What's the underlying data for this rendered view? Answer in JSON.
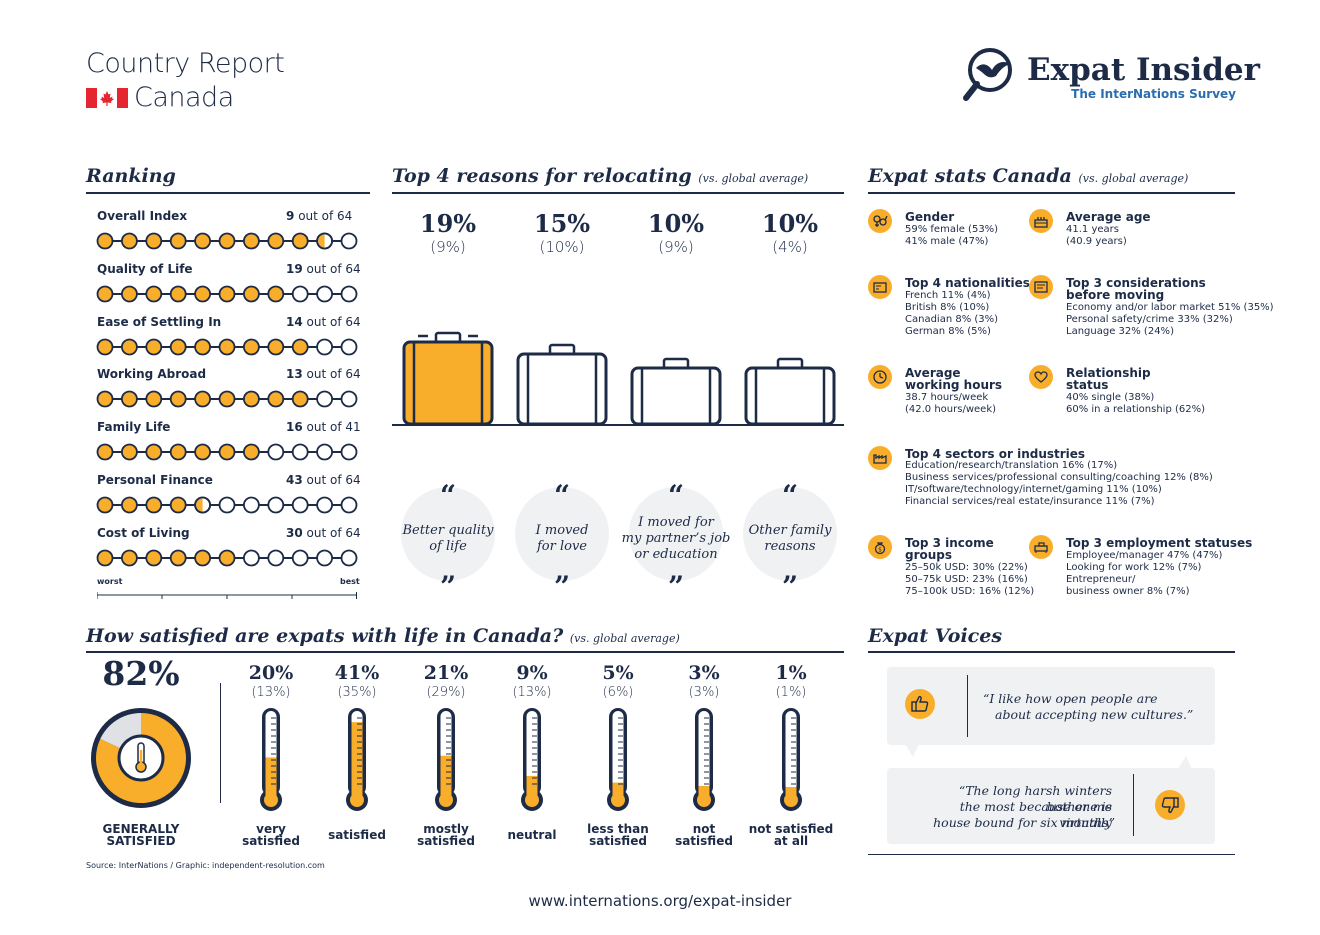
{
  "header": {
    "title": "Country Report",
    "country": "Canada",
    "brand": "Expat Insider",
    "brand_sub": "The InterNations Survey"
  },
  "ranking": {
    "title": "Ranking",
    "items": [
      {
        "label": "Overall Index",
        "rank": "9",
        "of": "out of 64",
        "fill": 0.87
      },
      {
        "label": "Quality of Life",
        "rank": "19",
        "of": "out of 64",
        "fill": 0.7
      },
      {
        "label": "Ease of Settling In",
        "rank": "14",
        "of": "out of 64",
        "fill": 0.8
      },
      {
        "label": "Working Abroad",
        "rank": "13",
        "of": "out of 64",
        "fill": 0.8
      },
      {
        "label": "Family Life",
        "rank": "16",
        "of": "out of 41",
        "fill": 0.6
      },
      {
        "label": "Personal Finance",
        "rank": "43",
        "of": "out of 64",
        "fill": 0.35
      },
      {
        "label": "Cost of Living",
        "rank": "30",
        "of": "out of 64",
        "fill": 0.5
      }
    ],
    "scale_worst": "worst",
    "scale_best": "best"
  },
  "reasons": {
    "title": "Top 4 reasons for relocating",
    "sub": "(vs. global average)",
    "items": [
      {
        "pct": "19%",
        "global": "(9%)",
        "text1": "Better quality",
        "text2": "of life",
        "text3": ""
      },
      {
        "pct": "15%",
        "global": "(10%)",
        "text1": "I moved",
        "text2": "for love",
        "text3": ""
      },
      {
        "pct": "10%",
        "global": "(9%)",
        "text1": "I moved for",
        "text2": "my partner’s job",
        "text3": "or education"
      },
      {
        "pct": "10%",
        "global": "(4%)",
        "text1": "Other family",
        "text2": "reasons",
        "text3": ""
      }
    ]
  },
  "stats": {
    "title": "Expat stats Canada",
    "sub": "(vs. global average)",
    "gender": {
      "title": "Gender",
      "lines": [
        "59% female (53%)",
        "41% male (47%)"
      ]
    },
    "age": {
      "title": "Average age",
      "lines": [
        "41.1 years",
        "(40.9 years)"
      ]
    },
    "nationalities": {
      "title": "Top 4 nationalities",
      "lines": [
        "French 11% (4%)",
        "British 8% (10%)",
        "Canadian 8% (3%)",
        "German 8% (5%)"
      ]
    },
    "considerations": {
      "title1": "Top 3 considerations",
      "title2": "before moving",
      "lines": [
        "Economy and/or labor market 51% (35%)",
        "Personal safety/crime 33% (32%)",
        "Language 32% (24%)"
      ]
    },
    "hours": {
      "title1": "Average",
      "title2": "working hours",
      "lines": [
        "38.7 hours/week",
        "(42.0 hours/week)"
      ]
    },
    "relationship": {
      "title1": "Relationship",
      "title2": "status",
      "lines": [
        "40% single (38%)",
        "60% in a relationship (62%)"
      ]
    },
    "sectors": {
      "title": "Top 4 sectors or industries",
      "lines": [
        "Education/research/translation 16% (17%)",
        "Business services/professional consulting/coaching 12% (8%)",
        "IT/software/technology/internet/gaming 11% (10%)",
        "Financial services/real estate/insurance 11% (7%)"
      ]
    },
    "income": {
      "title1": "Top 3 income",
      "title2": "groups",
      "lines": [
        "25–50k USD: 30% (22%)",
        "50–75k USD: 23% (16%)",
        "75–100k USD: 16% (12%)"
      ]
    },
    "employment": {
      "title": "Top 3 employment statuses",
      "lines": [
        "Employee/manager 47% (47%)",
        "Looking for work 12% (7%)",
        "Entrepreneur/",
        "business owner 8% (7%)"
      ]
    }
  },
  "satisfaction": {
    "title": "How satisfied are expats with life in Canada?",
    "sub": "(vs. global average)",
    "overall_pct": "82%",
    "overall_fraction": 0.82,
    "overall_label1": "GENERALLY",
    "overall_label2": "SATISFIED",
    "items": [
      {
        "pct": "20%",
        "global": "(13%)",
        "label1": "very",
        "label2": "satisfied",
        "fill": 0.2
      },
      {
        "pct": "41%",
        "global": "(35%)",
        "label1": "",
        "label2": "satisfied",
        "fill": 0.41
      },
      {
        "pct": "21%",
        "global": "(29%)",
        "label1": "mostly",
        "label2": "satisfied",
        "fill": 0.21
      },
      {
        "pct": "9%",
        "global": "(13%)",
        "label1": "",
        "label2": "neutral",
        "fill": 0.09
      },
      {
        "pct": "5%",
        "global": "(6%)",
        "label1": "less than",
        "label2": "satisfied",
        "fill": 0.05
      },
      {
        "pct": "3%",
        "global": "(3%)",
        "label1": "not",
        "label2": "satisfied",
        "fill": 0.03
      },
      {
        "pct": "1%",
        "global": "(1%)",
        "label1": "not satisfied",
        "label2": "at all",
        "fill": 0.01
      }
    ]
  },
  "voices": {
    "title": "Expat Voices",
    "quote1_line1": "“I like how open people are",
    "quote1_line2": "about accepting new cultures.”",
    "quote2_line1": "“The long harsh winters bother me",
    "quote2_line2": "the most because one is virtually",
    "quote2_line3": "house bound for six months”"
  },
  "footer": {
    "source": "Source: InterNations / Graphic: independent-resolution.com",
    "url": "www.internations.org/expat-insider"
  },
  "colors": {
    "navy": "#1d2b47",
    "orange": "#f9ae2b",
    "light": "#f0f1f3"
  }
}
